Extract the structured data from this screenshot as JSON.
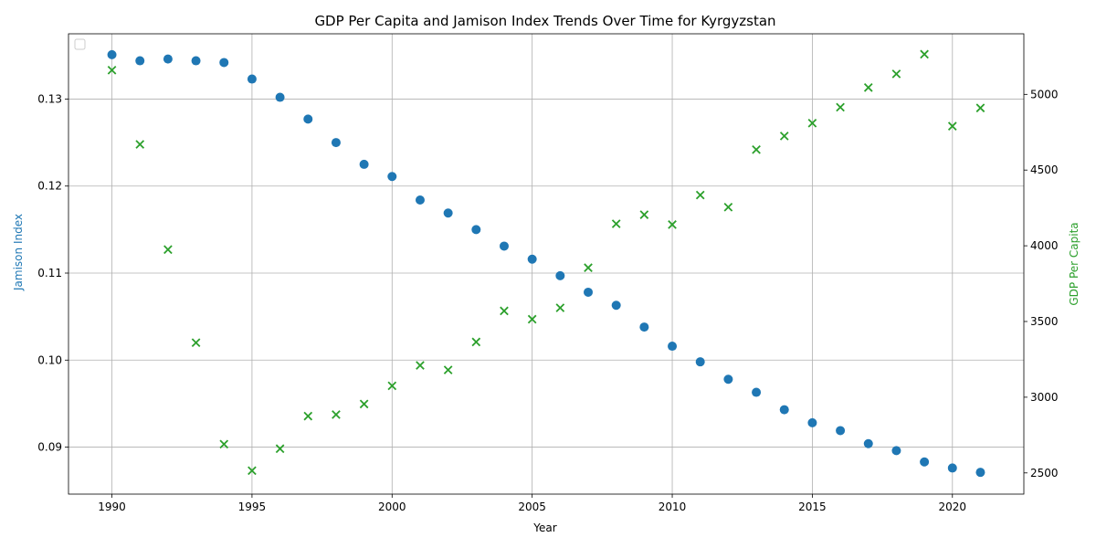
{
  "chart_data": {
    "type": "scatter",
    "title": "GDP Per Capita and Jamison Index Trends Over Time for Kyrgyzstan",
    "xlabel": "Year",
    "ylabel_left": "Jamison Index",
    "ylabel_right": "GDP Per Capita",
    "xlim": [
      1988.4,
      1992.6
    ],
    "xticks": [
      1990,
      1995,
      2000,
      2005,
      2010,
      2015,
      2020
    ],
    "ylim_left": [
      0.0846,
      0.1375
    ],
    "yticks_left": [
      "0.09",
      "0.10",
      "0.11",
      "0.12",
      "0.13"
    ],
    "yticks_left_values": [
      0.09,
      0.1,
      0.11,
      0.12,
      0.13
    ],
    "ylim_right": [
      2360,
      5400
    ],
    "yticks_right": [
      2500,
      3000,
      3500,
      4000,
      4500,
      5000
    ],
    "grid": true,
    "legend": "top-left (empty)",
    "colors": {
      "jamison": "#1f77b4",
      "gdp": "#2ca02c"
    },
    "x": [
      1990,
      1991,
      1992,
      1993,
      1994,
      1995,
      1996,
      1997,
      1998,
      1999,
      2000,
      2001,
      2002,
      2003,
      2004,
      2005,
      2006,
      2007,
      2008,
      2009,
      2010,
      2011,
      2012,
      2013,
      2014,
      2015,
      2016,
      2017,
      2018,
      2019,
      2020,
      2021
    ],
    "series": [
      {
        "axis": "left",
        "marker": "circle",
        "values": [
          0.1351,
          0.1344,
          0.1346,
          0.1344,
          0.1342,
          0.1323,
          0.1302,
          0.1277,
          0.125,
          0.1225,
          0.1211,
          0.1184,
          0.1169,
          0.115,
          0.1131,
          0.1116,
          0.1097,
          0.1078,
          0.1063,
          0.1038,
          0.1016,
          0.0998,
          0.0978,
          0.0963,
          0.0943,
          0.0928,
          0.0919,
          0.0904,
          0.0896,
          0.0883,
          0.0876,
          0.0871
        ]
      },
      {
        "axis": "right",
        "marker": "x",
        "values": [
          5160,
          4670,
          3975,
          3360,
          2690,
          2515,
          2660,
          2875,
          2885,
          2955,
          3075,
          3210,
          3180,
          3365,
          3570,
          3515,
          3590,
          3855,
          4145,
          4205,
          4140,
          4335,
          4255,
          4635,
          4725,
          4810,
          4915,
          5045,
          5135,
          5265,
          4790,
          4910
        ]
      }
    ]
  }
}
